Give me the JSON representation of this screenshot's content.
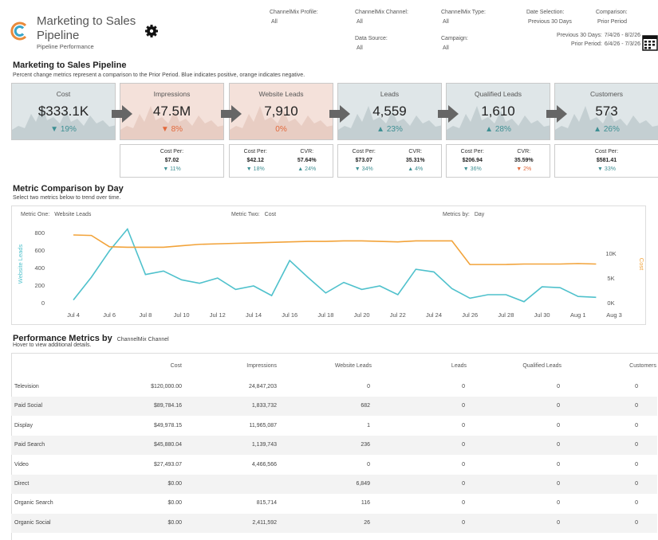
{
  "header": {
    "title": "Marketing to Sales Pipeline",
    "subtitle": "Pipeline Performance"
  },
  "filters": [
    {
      "label": "ChannelMix Profile:",
      "value": "All"
    },
    {
      "label": "ChannelMix Channel:",
      "value": "All"
    },
    {
      "label": "ChannelMix Type:",
      "value": "All"
    },
    {
      "label": "Date Selection:",
      "value": "Previous 30 Days"
    },
    {
      "label": "Comparison:",
      "value": "Prior Period"
    },
    {
      "label": "Data Source:",
      "value": "All"
    },
    {
      "label": "Campaign:",
      "value": "All"
    }
  ],
  "date_ranges": [
    {
      "label": "Previous 30 Days:",
      "value": "7/4/26 - 8/2/26"
    },
    {
      "label": "Prior Period:",
      "value": "6/4/26 - 7/3/26"
    }
  ],
  "pipeline": {
    "title": "Marketing to Sales Pipeline",
    "note": "Percent change metrics represent a comparison to the Prior Period. Blue indicates positive, orange indicates negative.",
    "positive_color": "#3e8f93",
    "negative_color": "#e2693c",
    "kpis": [
      {
        "name": "Cost",
        "value": "$333.1K",
        "change": "▼ 19%",
        "sentiment": "positive",
        "details": []
      },
      {
        "name": "Impressions",
        "value": "47.5M",
        "change": "▼ 8%",
        "sentiment": "negative",
        "details": [
          {
            "label": "Cost Per:",
            "value": "$7.02",
            "change": "▼ 11%",
            "sentiment": "positive"
          }
        ]
      },
      {
        "name": "Website Leads",
        "value": "7,910",
        "change": "0%",
        "sentiment": "negative",
        "details": [
          {
            "label": "Cost Per:",
            "value": "$42.12",
            "change": "▼ 18%",
            "sentiment": "positive"
          },
          {
            "label": "CVR:",
            "value": "57.64%",
            "change": "▲ 24%",
            "sentiment": "positive"
          }
        ]
      },
      {
        "name": "Leads",
        "value": "4,559",
        "change": "▲ 23%",
        "sentiment": "positive",
        "details": [
          {
            "label": "Cost Per:",
            "value": "$73.07",
            "change": "▼ 34%",
            "sentiment": "positive"
          },
          {
            "label": "CVR:",
            "value": "35.31%",
            "change": "▲ 4%",
            "sentiment": "positive"
          }
        ]
      },
      {
        "name": "Qualified Leads",
        "value": "1,610",
        "change": "▲ 28%",
        "sentiment": "positive",
        "details": [
          {
            "label": "Cost Per:",
            "value": "$206.94",
            "change": "▼ 36%",
            "sentiment": "positive"
          },
          {
            "label": "CVR:",
            "value": "35.59%",
            "change": "▼ 2%",
            "sentiment": "negative"
          }
        ]
      },
      {
        "name": "Customers",
        "value": "573",
        "change": "▲ 26%",
        "sentiment": "positive",
        "details": [
          {
            "label": "Cost Per:",
            "value": "$581.41",
            "change": "▼ 33%",
            "sentiment": "positive"
          }
        ]
      }
    ]
  },
  "chart_data": {
    "type": "line",
    "title": "Metric Comparison by Day",
    "subtitle": "Select two metrics below to trend over time.",
    "controls": [
      {
        "label": "Metric One:",
        "value": "Website Leads"
      },
      {
        "label": "Metric Two:",
        "value": "Cost"
      },
      {
        "label": "Metrics by:",
        "value": "Day"
      }
    ],
    "categories": [
      "Jul 4",
      null,
      "Jul 6",
      null,
      "Jul 8",
      null,
      "Jul 10",
      null,
      "Jul 12",
      null,
      "Jul 14",
      null,
      "Jul 16",
      null,
      "Jul 18",
      null,
      "Jul 20",
      null,
      "Jul 22",
      null,
      "Jul 24",
      null,
      "Jul 26",
      null,
      "Jul 28",
      null,
      "Jul 30",
      null,
      "Aug 1",
      null,
      "Aug 3"
    ],
    "ylabel": "Website Leads",
    "y2label": "Cost",
    "ylim": [
      0,
      900
    ],
    "yticks": [
      0,
      200,
      400,
      600,
      800
    ],
    "y2lim": [
      0,
      16000
    ],
    "y2ticks": [
      {
        "value": 0,
        "label": "0K"
      },
      {
        "value": 5000,
        "label": "5K"
      },
      {
        "value": 10000,
        "label": "10K"
      }
    ],
    "series": [
      {
        "name": "Website Leads",
        "color": "#4fc1cc",
        "values": [
          40,
          300,
          600,
          850,
          330,
          370,
          270,
          230,
          290,
          160,
          200,
          90,
          490,
          300,
          120,
          240,
          160,
          200,
          100,
          390,
          360,
          170,
          60,
          100,
          100,
          20,
          190,
          180,
          80,
          70,
          null
        ]
      },
      {
        "name": "Cost",
        "color": "#f2a33a",
        "axis": "y2",
        "values": [
          13900,
          13800,
          11500,
          11400,
          11400,
          11400,
          11700,
          12000,
          12100,
          12200,
          12300,
          12400,
          12500,
          12600,
          12600,
          12700,
          12700,
          12600,
          12500,
          12700,
          12700,
          12700,
          7900,
          7900,
          7900,
          8000,
          8000,
          8000,
          8100,
          8000,
          null
        ]
      }
    ]
  },
  "table": {
    "title": "Performance Metrics by",
    "dimension": "ChannelMix Channel",
    "note": "Hover to view additional details.",
    "columns": [
      "Cost",
      "Impressions",
      "Website Leads",
      "Leads",
      "Qualified Leads",
      "Customers"
    ],
    "rows": [
      {
        "channel": "Television",
        "cells": [
          "$120,000.00",
          "24,847,203",
          "0",
          "0",
          "0",
          "0"
        ]
      },
      {
        "channel": "Paid Social",
        "cells": [
          "$89,784.16",
          "1,833,732",
          "682",
          "0",
          "0",
          "0"
        ]
      },
      {
        "channel": "Display",
        "cells": [
          "$49,978.15",
          "11,965,087",
          "1",
          "0",
          "0",
          "0"
        ]
      },
      {
        "channel": "Paid Search",
        "cells": [
          "$45,880.04",
          "1,139,743",
          "236",
          "0",
          "0",
          "0"
        ]
      },
      {
        "channel": "Video",
        "cells": [
          "$27,493.07",
          "4,466,566",
          "0",
          "0",
          "0",
          "0"
        ]
      },
      {
        "channel": "Direct",
        "cells": [
          "$0.00",
          null,
          "6,849",
          "0",
          "0",
          "0"
        ]
      },
      {
        "channel": "Organic Search",
        "cells": [
          "$0.00",
          "815,714",
          "116",
          "0",
          "0",
          "0"
        ]
      },
      {
        "channel": "Organic Social",
        "cells": [
          "$0.00",
          "2,411,592",
          "26",
          "0",
          "0",
          "0"
        ]
      }
    ]
  }
}
